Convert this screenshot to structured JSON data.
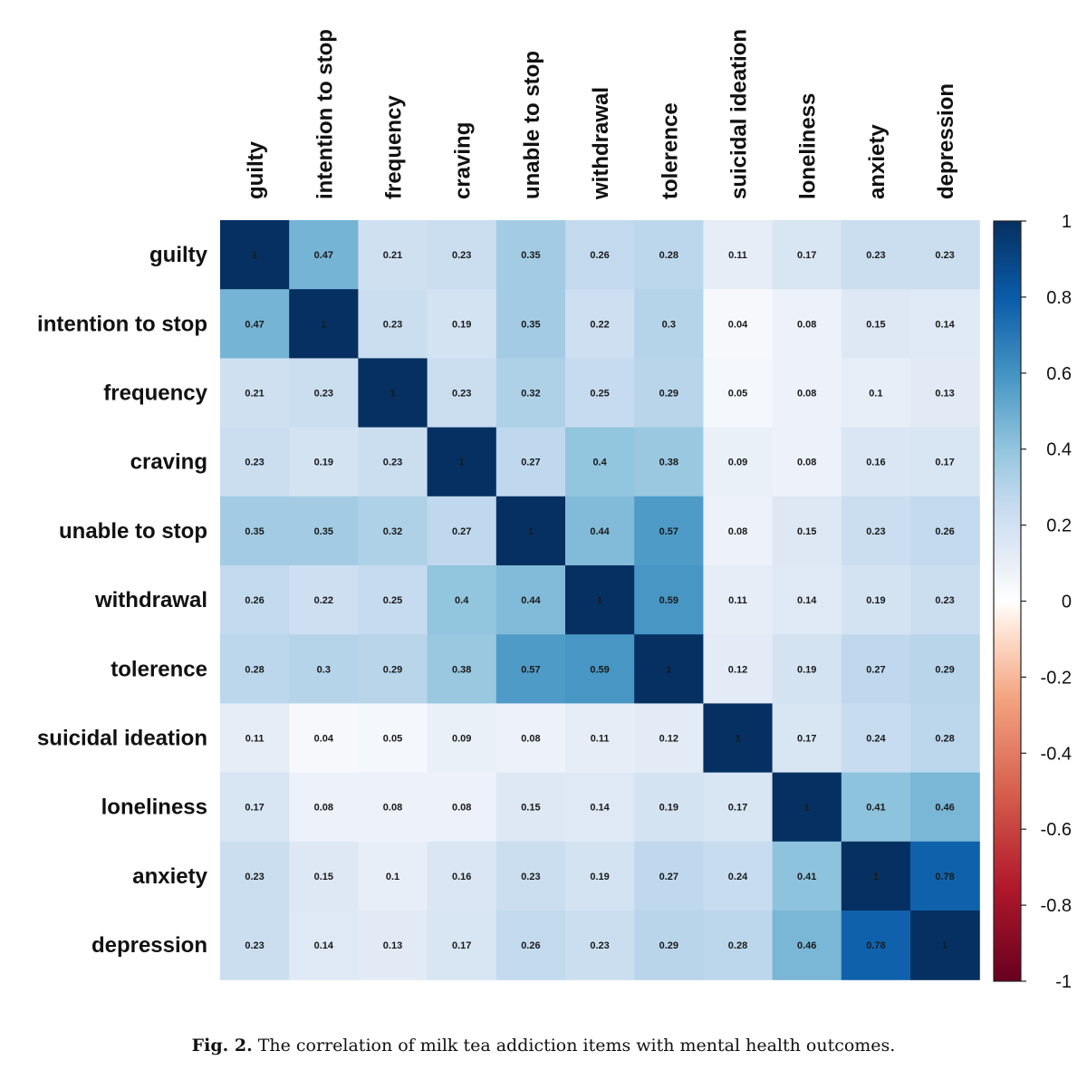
{
  "chart_data": {
    "type": "heatmap",
    "variables": [
      "guilty",
      "intention to stop",
      "frequency",
      "craving",
      "unable to stop",
      "withdrawal",
      "tolerence",
      "suicidal ideation",
      "loneliness",
      "anxiety",
      "depression"
    ],
    "matrix": [
      [
        1,
        0.47,
        0.21,
        0.23,
        0.35,
        0.26,
        0.28,
        0.11,
        0.17,
        0.23,
        0.23
      ],
      [
        0.47,
        1,
        0.23,
        0.19,
        0.35,
        0.22,
        0.3,
        0.04,
        0.08,
        0.15,
        0.14
      ],
      [
        0.21,
        0.23,
        1,
        0.23,
        0.32,
        0.25,
        0.29,
        0.05,
        0.08,
        0.1,
        0.13
      ],
      [
        0.23,
        0.19,
        0.23,
        1,
        0.27,
        0.4,
        0.38,
        0.09,
        0.08,
        0.16,
        0.17
      ],
      [
        0.35,
        0.35,
        0.32,
        0.27,
        1,
        0.44,
        0.57,
        0.08,
        0.15,
        0.23,
        0.26
      ],
      [
        0.26,
        0.22,
        0.25,
        0.4,
        0.44,
        1,
        0.59,
        0.11,
        0.14,
        0.19,
        0.23
      ],
      [
        0.28,
        0.3,
        0.29,
        0.38,
        0.57,
        0.59,
        1,
        0.12,
        0.19,
        0.27,
        0.29
      ],
      [
        0.11,
        0.04,
        0.05,
        0.09,
        0.08,
        0.11,
        0.12,
        1,
        0.17,
        0.24,
        0.28
      ],
      [
        0.17,
        0.08,
        0.08,
        0.08,
        0.15,
        0.14,
        0.19,
        0.17,
        1,
        0.41,
        0.46
      ],
      [
        0.23,
        0.15,
        0.1,
        0.16,
        0.23,
        0.19,
        0.27,
        0.24,
        0.41,
        1,
        0.78
      ],
      [
        0.23,
        0.14,
        0.13,
        0.17,
        0.26,
        0.23,
        0.29,
        0.28,
        0.46,
        0.78,
        1
      ]
    ],
    "color_scale": {
      "range": [
        -1,
        1
      ],
      "ticks": [
        1,
        0.8,
        0.6,
        0.4,
        0.2,
        0,
        -0.2,
        -0.4,
        -0.6,
        -0.8,
        -1
      ],
      "stops": [
        {
          "v": -1,
          "color": "#67001f"
        },
        {
          "v": -0.75,
          "color": "#b2182b"
        },
        {
          "v": -0.5,
          "color": "#d6604d"
        },
        {
          "v": -0.25,
          "color": "#f4a582"
        },
        {
          "v": -0.1,
          "color": "#fddbc7"
        },
        {
          "v": 0,
          "color": "#ffffff"
        },
        {
          "v": 0.1,
          "color": "#e8eef7"
        },
        {
          "v": 0.25,
          "color": "#c6dbef"
        },
        {
          "v": 0.4,
          "color": "#92c5de"
        },
        {
          "v": 0.6,
          "color": "#4393c3"
        },
        {
          "v": 0.8,
          "color": "#0a5ba8"
        },
        {
          "v": 1,
          "color": "#053061"
        }
      ]
    },
    "grid": false,
    "legend_position": "right"
  },
  "caption": {
    "label": "Fig. 2.",
    "text": "The correlation of milk tea addiction items with mental health outcomes."
  }
}
